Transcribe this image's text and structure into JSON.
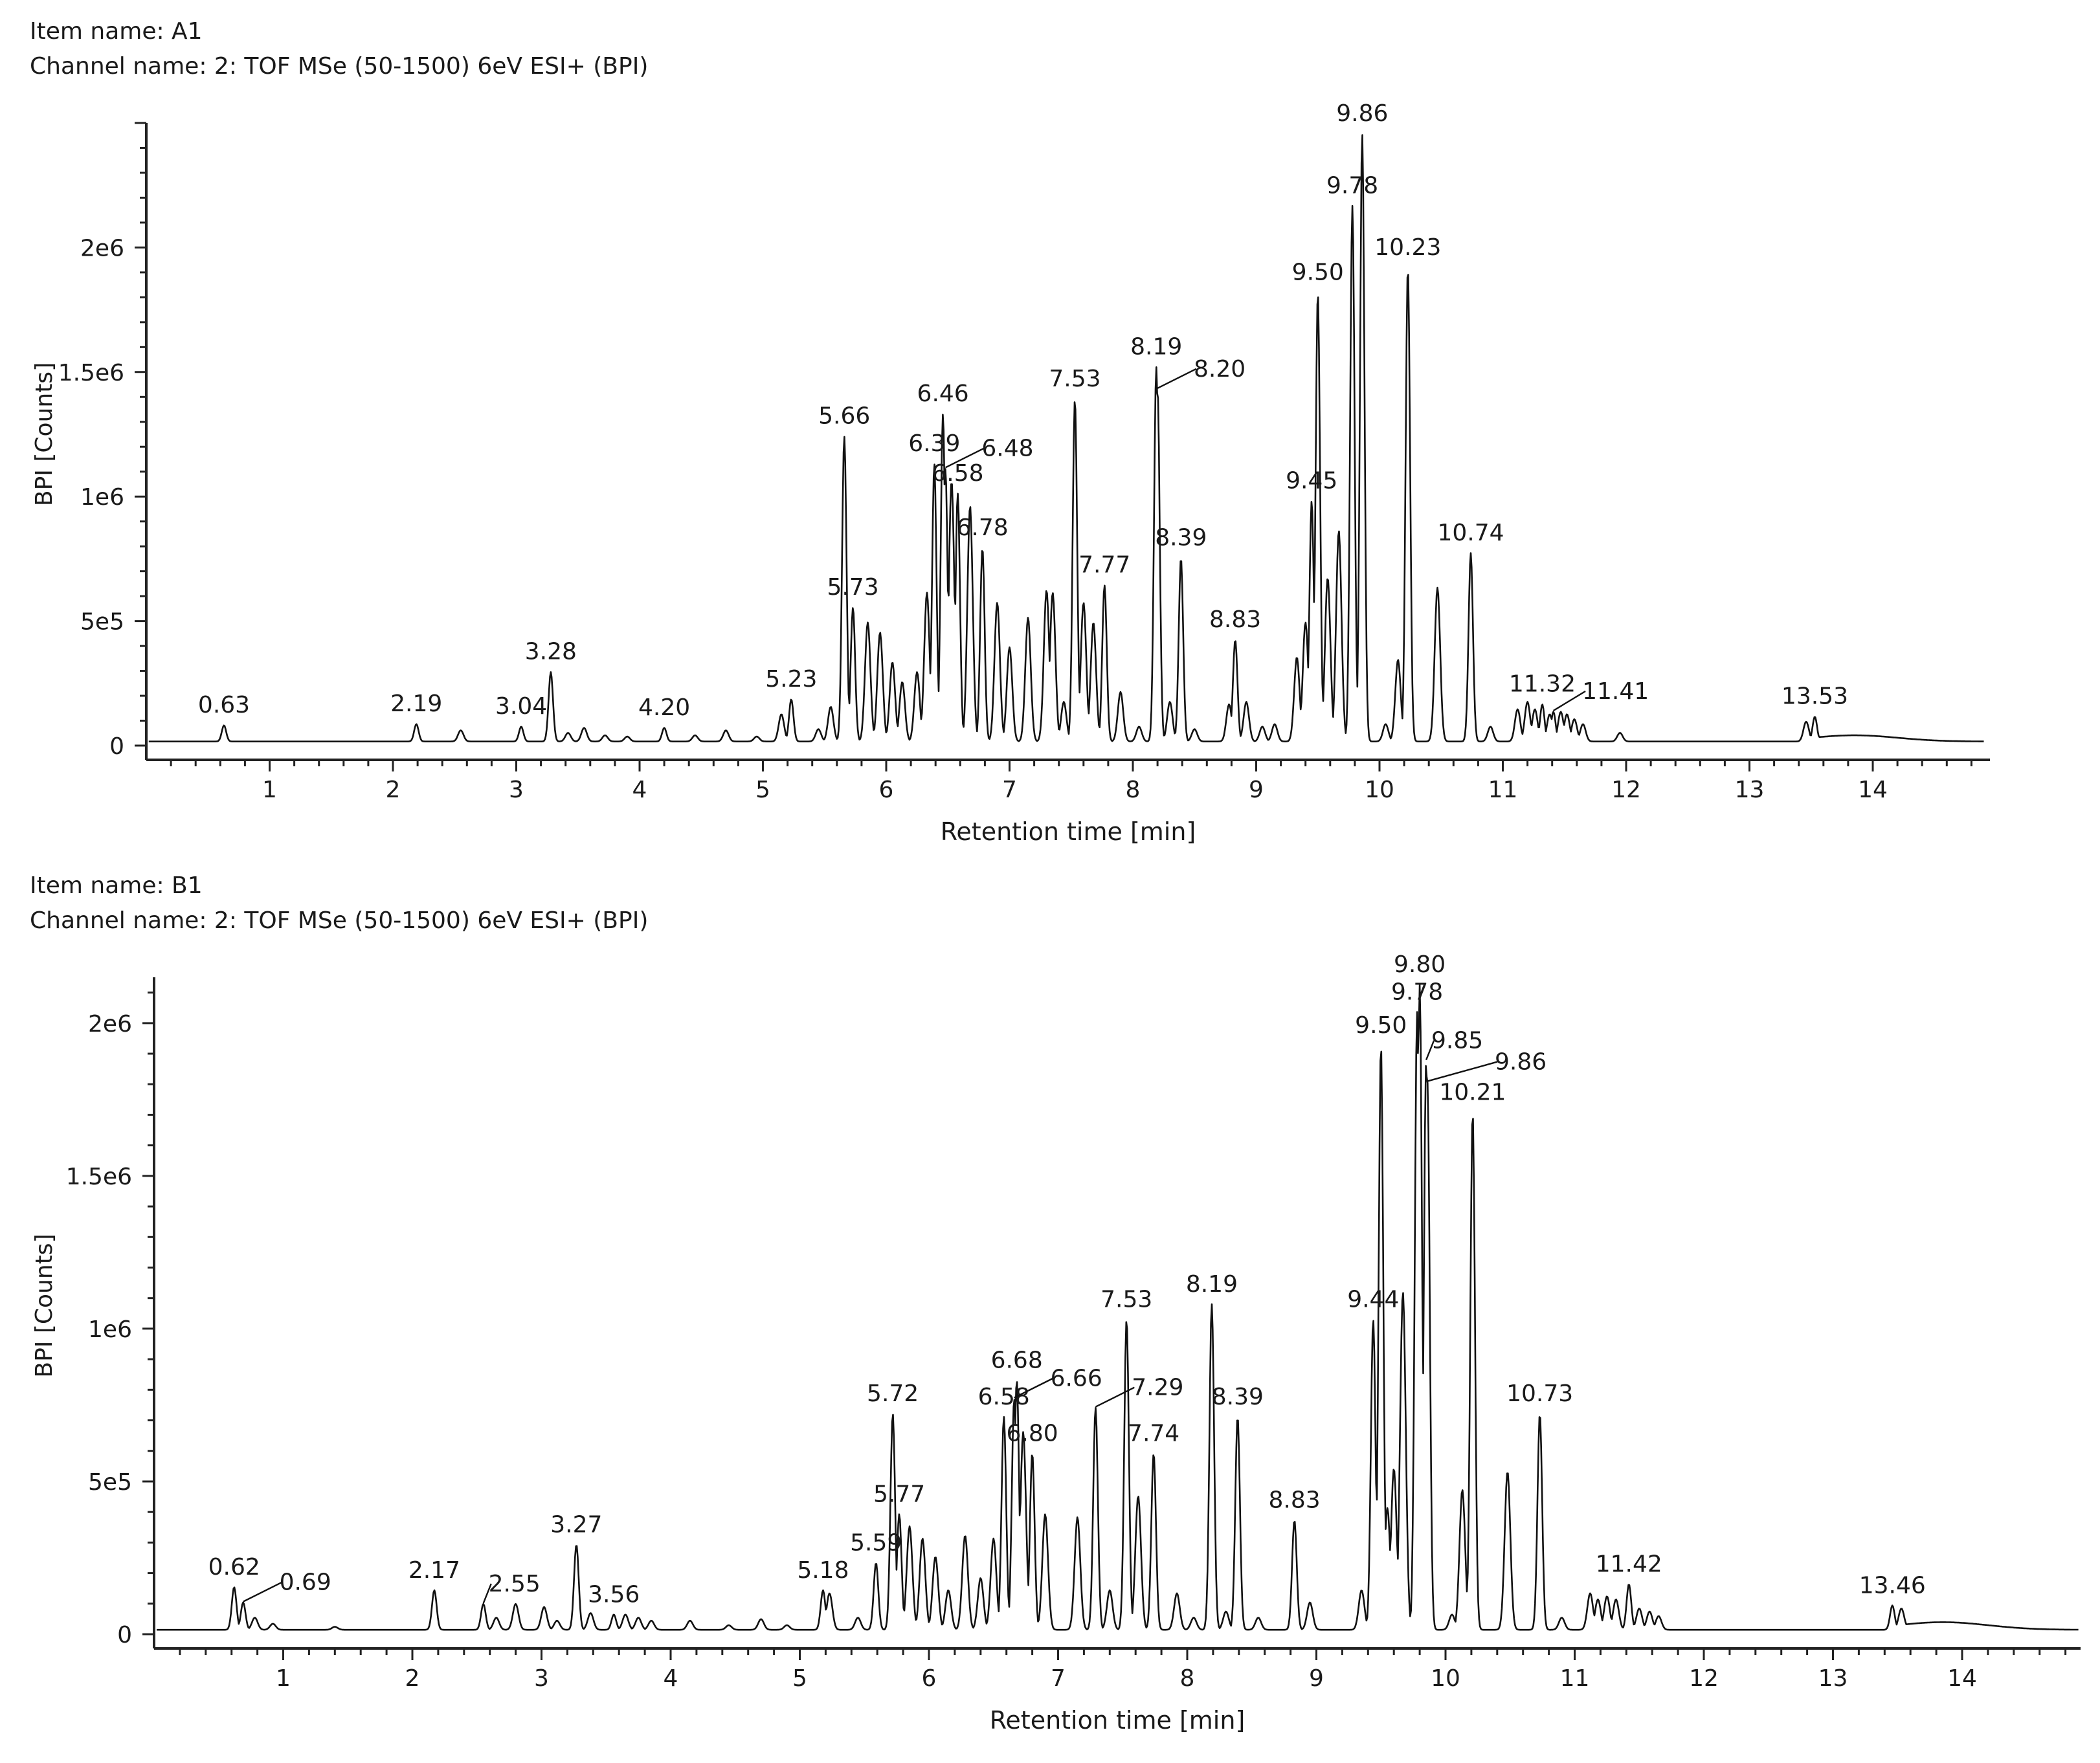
{
  "chart_data": [
    {
      "type": "line",
      "item_name": "Item name: A1",
      "channel_name": "Channel name: 2: TOF MSe (50-1500) 6eV ESI+ (BPI)",
      "xlabel": "Retention time [min]",
      "ylabel": "BPI [Counts]",
      "xlim": [
        0,
        14.9
      ],
      "ylim": [
        0,
        2500000
      ],
      "x_ticks": [
        "1",
        "2",
        "3",
        "4",
        "5",
        "6",
        "7",
        "8",
        "9",
        "10",
        "11",
        "12",
        "13",
        "14"
      ],
      "y_ticks": [
        {
          "value": 0,
          "label": "0"
        },
        {
          "value": 500000,
          "label": "5e5"
        },
        {
          "value": 1000000,
          "label": "1e6"
        },
        {
          "value": 1500000,
          "label": "1.5e6"
        },
        {
          "value": 2000000,
          "label": "2e6"
        }
      ],
      "peaks": [
        {
          "x": 0.63,
          "y": 65000,
          "label": "0.63"
        },
        {
          "x": 2.19,
          "y": 70000,
          "label": "2.19"
        },
        {
          "x": 3.04,
          "y": 60000,
          "label": "3.04"
        },
        {
          "x": 3.28,
          "y": 280000,
          "label": "3.28"
        },
        {
          "x": 4.2,
          "y": 55000,
          "label": "4.20"
        },
        {
          "x": 5.23,
          "y": 170000,
          "label": "5.23"
        },
        {
          "x": 5.66,
          "y": 1230000,
          "label": "5.66"
        },
        {
          "x": 5.73,
          "y": 540000,
          "label": "5.73"
        },
        {
          "x": 6.39,
          "y": 1120000,
          "label": "6.39"
        },
        {
          "x": 6.46,
          "y": 1320000,
          "label": "6.46"
        },
        {
          "x": 6.48,
          "y": 1100000,
          "label": "6.48"
        },
        {
          "x": 6.58,
          "y": 1000000,
          "label": "6.58"
        },
        {
          "x": 6.78,
          "y": 780000,
          "label": "6.78"
        },
        {
          "x": 7.53,
          "y": 1380000,
          "label": "7.53"
        },
        {
          "x": 7.77,
          "y": 630000,
          "label": "7.77"
        },
        {
          "x": 8.19,
          "y": 1510000,
          "label": "8.19"
        },
        {
          "x": 8.2,
          "y": 1420000,
          "label": "8.20"
        },
        {
          "x": 8.39,
          "y": 740000,
          "label": "8.39"
        },
        {
          "x": 8.83,
          "y": 410000,
          "label": "8.83"
        },
        {
          "x": 9.45,
          "y": 970000,
          "label": "9.45"
        },
        {
          "x": 9.5,
          "y": 1810000,
          "label": "9.50"
        },
        {
          "x": 9.78,
          "y": 2160000,
          "label": "9.78"
        },
        {
          "x": 9.86,
          "y": 2450000,
          "label": "9.86"
        },
        {
          "x": 10.23,
          "y": 1910000,
          "label": "10.23"
        },
        {
          "x": 10.74,
          "y": 760000,
          "label": "10.74"
        },
        {
          "x": 11.32,
          "y": 150000,
          "label": "11.32"
        },
        {
          "x": 11.41,
          "y": 120000,
          "label": "11.41"
        },
        {
          "x": 13.53,
          "y": 100000,
          "label": "13.53"
        }
      ],
      "minor_peaks": [
        {
          "x": 2.55,
          "y": 45000
        },
        {
          "x": 3.42,
          "y": 35000
        },
        {
          "x": 3.55,
          "y": 55000
        },
        {
          "x": 3.72,
          "y": 25000
        },
        {
          "x": 3.9,
          "y": 20000
        },
        {
          "x": 4.45,
          "y": 25000
        },
        {
          "x": 4.7,
          "y": 45000
        },
        {
          "x": 4.95,
          "y": 20000
        },
        {
          "x": 5.15,
          "y": 110000
        },
        {
          "x": 5.45,
          "y": 50000
        },
        {
          "x": 5.55,
          "y": 140000
        },
        {
          "x": 5.85,
          "y": 480000
        },
        {
          "x": 5.95,
          "y": 440000
        },
        {
          "x": 6.05,
          "y": 320000
        },
        {
          "x": 6.13,
          "y": 240000
        },
        {
          "x": 6.25,
          "y": 280000
        },
        {
          "x": 6.33,
          "y": 600000
        },
        {
          "x": 6.53,
          "y": 1050000
        },
        {
          "x": 6.68,
          "y": 950000
        },
        {
          "x": 6.9,
          "y": 560000
        },
        {
          "x": 7.0,
          "y": 380000
        },
        {
          "x": 7.15,
          "y": 500000
        },
        {
          "x": 7.3,
          "y": 610000
        },
        {
          "x": 7.35,
          "y": 600000
        },
        {
          "x": 7.44,
          "y": 160000
        },
        {
          "x": 7.6,
          "y": 560000
        },
        {
          "x": 7.68,
          "y": 480000
        },
        {
          "x": 7.9,
          "y": 200000
        },
        {
          "x": 8.05,
          "y": 60000
        },
        {
          "x": 8.3,
          "y": 160000
        },
        {
          "x": 8.5,
          "y": 50000
        },
        {
          "x": 8.78,
          "y": 150000
        },
        {
          "x": 8.92,
          "y": 160000
        },
        {
          "x": 9.05,
          "y": 60000
        },
        {
          "x": 9.15,
          "y": 70000
        },
        {
          "x": 9.33,
          "y": 340000
        },
        {
          "x": 9.4,
          "y": 480000
        },
        {
          "x": 9.58,
          "y": 660000
        },
        {
          "x": 9.67,
          "y": 850000
        },
        {
          "x": 10.05,
          "y": 70000
        },
        {
          "x": 10.15,
          "y": 330000
        },
        {
          "x": 10.47,
          "y": 620000
        },
        {
          "x": 10.9,
          "y": 60000
        },
        {
          "x": 11.12,
          "y": 130000
        },
        {
          "x": 11.2,
          "y": 160000
        },
        {
          "x": 11.26,
          "y": 130000
        },
        {
          "x": 11.38,
          "y": 110000
        },
        {
          "x": 11.47,
          "y": 120000
        },
        {
          "x": 11.52,
          "y": 110000
        },
        {
          "x": 11.58,
          "y": 90000
        },
        {
          "x": 11.65,
          "y": 70000
        },
        {
          "x": 11.95,
          "y": 35000
        },
        {
          "x": 13.46,
          "y": 80000
        }
      ],
      "hump": {
        "x": 13.85,
        "y": 25000
      }
    },
    {
      "type": "line",
      "item_name": "Item name: B1",
      "channel_name": "Channel name: 2: TOF MSe (50-1500) 6eV ESI+ (BPI)",
      "xlabel": "Retention time [min]",
      "ylabel": "BPI [Counts]",
      "xlim": [
        0,
        14.9
      ],
      "ylim": [
        0,
        2150000
      ],
      "x_ticks": [
        "1",
        "2",
        "3",
        "4",
        "5",
        "6",
        "7",
        "8",
        "9",
        "10",
        "11",
        "12",
        "13",
        "14"
      ],
      "y_ticks": [
        {
          "value": 0,
          "label": "0"
        },
        {
          "value": 500000,
          "label": "5e5"
        },
        {
          "value": 1000000,
          "label": "1e6"
        },
        {
          "value": 1500000,
          "label": "1.5e6"
        },
        {
          "value": 2000000,
          "label": "2e6"
        }
      ],
      "peaks": [
        {
          "x": 0.62,
          "y": 140000,
          "label": "0.62"
        },
        {
          "x": 0.69,
          "y": 90000,
          "label": "0.69"
        },
        {
          "x": 2.17,
          "y": 130000,
          "label": "2.17"
        },
        {
          "x": 2.55,
          "y": 85000,
          "label": "2.55"
        },
        {
          "x": 3.27,
          "y": 280000,
          "label": "3.27"
        },
        {
          "x": 3.56,
          "y": 50000,
          "label": "3.56"
        },
        {
          "x": 5.18,
          "y": 130000,
          "label": "5.18"
        },
        {
          "x": 5.59,
          "y": 220000,
          "label": "5.59"
        },
        {
          "x": 5.72,
          "y": 710000,
          "label": "5.72"
        },
        {
          "x": 5.77,
          "y": 380000,
          "label": "5.77"
        },
        {
          "x": 6.58,
          "y": 700000,
          "label": "6.58"
        },
        {
          "x": 6.66,
          "y": 760000,
          "label": "6.66"
        },
        {
          "x": 6.68,
          "y": 820000,
          "label": "6.68"
        },
        {
          "x": 6.8,
          "y": 580000,
          "label": "6.80"
        },
        {
          "x": 7.29,
          "y": 730000,
          "label": "7.29"
        },
        {
          "x": 7.53,
          "y": 1020000,
          "label": "7.53"
        },
        {
          "x": 7.74,
          "y": 580000,
          "label": "7.74"
        },
        {
          "x": 8.19,
          "y": 1070000,
          "label": "8.19"
        },
        {
          "x": 8.39,
          "y": 700000,
          "label": "8.39"
        },
        {
          "x": 8.83,
          "y": 360000,
          "label": "8.83"
        },
        {
          "x": 9.44,
          "y": 1020000,
          "label": "9.44"
        },
        {
          "x": 9.5,
          "y": 1920000,
          "label": "9.50"
        },
        {
          "x": 9.78,
          "y": 2030000,
          "label": "9.78"
        },
        {
          "x": 9.8,
          "y": 2120000,
          "label": "9.80"
        },
        {
          "x": 9.85,
          "y": 1870000,
          "label": "9.85"
        },
        {
          "x": 9.86,
          "y": 1800000,
          "label": "9.86"
        },
        {
          "x": 10.21,
          "y": 1700000,
          "label": "10.21"
        },
        {
          "x": 10.73,
          "y": 710000,
          "label": "10.73"
        },
        {
          "x": 11.42,
          "y": 150000,
          "label": "11.42"
        },
        {
          "x": 13.46,
          "y": 80000,
          "label": "13.46"
        }
      ],
      "minor_peaks": [
        {
          "x": 0.78,
          "y": 40000
        },
        {
          "x": 0.92,
          "y": 20000
        },
        {
          "x": 1.4,
          "y": 10000
        },
        {
          "x": 2.8,
          "y": 85000
        },
        {
          "x": 2.65,
          "y": 40000
        },
        {
          "x": 3.02,
          "y": 75000
        },
        {
          "x": 3.12,
          "y": 30000
        },
        {
          "x": 3.38,
          "y": 55000
        },
        {
          "x": 3.65,
          "y": 50000
        },
        {
          "x": 3.75,
          "y": 40000
        },
        {
          "x": 3.85,
          "y": 30000
        },
        {
          "x": 4.15,
          "y": 30000
        },
        {
          "x": 4.45,
          "y": 15000
        },
        {
          "x": 4.7,
          "y": 35000
        },
        {
          "x": 4.9,
          "y": 15000
        },
        {
          "x": 5.23,
          "y": 120000
        },
        {
          "x": 5.45,
          "y": 40000
        },
        {
          "x": 5.85,
          "y": 340000
        },
        {
          "x": 5.95,
          "y": 300000
        },
        {
          "x": 6.05,
          "y": 240000
        },
        {
          "x": 6.15,
          "y": 130000
        },
        {
          "x": 6.28,
          "y": 310000
        },
        {
          "x": 6.4,
          "y": 170000
        },
        {
          "x": 6.5,
          "y": 300000
        },
        {
          "x": 6.73,
          "y": 650000
        },
        {
          "x": 6.9,
          "y": 380000
        },
        {
          "x": 7.15,
          "y": 370000
        },
        {
          "x": 7.4,
          "y": 130000
        },
        {
          "x": 7.62,
          "y": 440000
        },
        {
          "x": 7.92,
          "y": 120000
        },
        {
          "x": 8.05,
          "y": 40000
        },
        {
          "x": 8.3,
          "y": 60000
        },
        {
          "x": 8.55,
          "y": 40000
        },
        {
          "x": 8.95,
          "y": 90000
        },
        {
          "x": 9.35,
          "y": 130000
        },
        {
          "x": 9.55,
          "y": 400000
        },
        {
          "x": 9.6,
          "y": 530000
        },
        {
          "x": 9.67,
          "y": 1110000
        },
        {
          "x": 10.05,
          "y": 50000
        },
        {
          "x": 10.13,
          "y": 460000
        },
        {
          "x": 10.48,
          "y": 520000
        },
        {
          "x": 10.9,
          "y": 40000
        },
        {
          "x": 11.12,
          "y": 120000
        },
        {
          "x": 11.18,
          "y": 100000
        },
        {
          "x": 11.25,
          "y": 110000
        },
        {
          "x": 11.32,
          "y": 100000
        },
        {
          "x": 11.5,
          "y": 70000
        },
        {
          "x": 11.58,
          "y": 60000
        },
        {
          "x": 11.65,
          "y": 45000
        },
        {
          "x": 13.53,
          "y": 70000
        }
      ],
      "hump": {
        "x": 13.85,
        "y": 25000
      }
    }
  ]
}
